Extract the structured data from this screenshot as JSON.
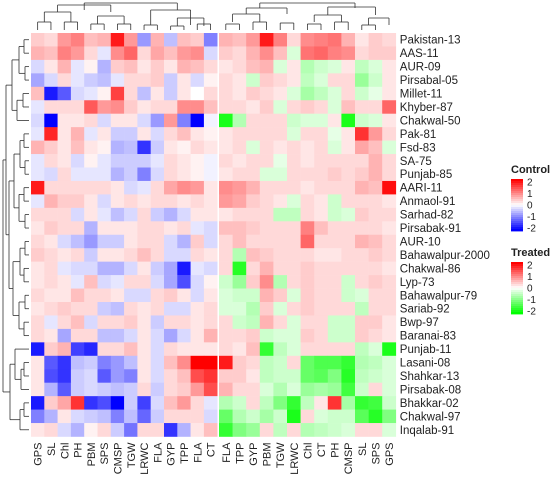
{
  "chart_data": {
    "type": "heatmap",
    "title": "",
    "rows": [
      "Pakistan-13",
      "AAS-11",
      "AUR-09",
      "Pirsabal-05",
      "Millet-11",
      "Khyber-87",
      "Chakwal-50",
      "Pak-81",
      "Fsd-83",
      "SA-75",
      "Punjab-85",
      "AARI-11",
      "Anmaol-91",
      "Sarhad-82",
      "Pirsabak-91",
      "AUR-10",
      "Bahawalpur-2000",
      "Chakwal-86",
      "Lyp-73",
      "Bahawalpur-79",
      "Sariab-92",
      "Bwp-97",
      "Baranai-83",
      "Punjab-11",
      "Lasani-08",
      "Shahkar-13",
      "Pirsabak-08",
      "Bhakkar-02",
      "Chakwal-97",
      "Inqalab-91"
    ],
    "panels": [
      {
        "name": "Control",
        "columns": [
          "GPS",
          "SL",
          "Chl",
          "PH",
          "PBM",
          "SPS",
          "CMSP",
          "TGW",
          "LRWC",
          "FLA",
          "GYP",
          "TPP",
          "FLA",
          "CT"
        ],
        "legend_title": "Control",
        "legend_ticks": [
          "2",
          "1",
          "0",
          "-1",
          "-2"
        ],
        "scale_colors": {
          "low": "#0000ff",
          "mid": "#ffffff",
          "high": "#ff0000"
        },
        "values": [
          [
            0.4,
            0.3,
            0.8,
            1.0,
            0.5,
            0.6,
            1.8,
            0.8,
            -0.8,
            0.6,
            -0.5,
            0.5,
            0.4,
            -1.0
          ],
          [
            0.6,
            0.5,
            1.0,
            0.8,
            0.3,
            -0.2,
            0.9,
            1.2,
            0.3,
            0.7,
            0.5,
            0.8,
            0.9,
            -0.3
          ],
          [
            -0.3,
            0.2,
            0.6,
            -0.2,
            0.1,
            -0.6,
            0.4,
            0.5,
            0.2,
            0.4,
            0.2,
            0.6,
            0.5,
            0.3
          ],
          [
            -0.7,
            -0.3,
            0.3,
            -0.2,
            -0.4,
            -0.5,
            -0.2,
            0.3,
            0.3,
            0.4,
            -0.4,
            0.2,
            -0.3,
            0.1
          ],
          [
            0.5,
            -1.8,
            -1.3,
            -0.3,
            -0.2,
            0.1,
            1.5,
            0.3,
            -0.5,
            0.2,
            -0.4,
            0.2,
            0.0,
            0.3
          ],
          [
            -0.2,
            0.3,
            0.3,
            0.3,
            1.3,
            0.8,
            0.9,
            0.4,
            0.2,
            0.3,
            0.3,
            0.9,
            0.9,
            0.5
          ],
          [
            -0.3,
            -2.0,
            0.2,
            0.2,
            0.3,
            -0.3,
            0.2,
            0.2,
            -0.3,
            -0.8,
            0.8,
            -1.0,
            -2.0,
            -0.1
          ],
          [
            -0.2,
            1.7,
            0.2,
            0.6,
            -0.2,
            0.2,
            -0.4,
            -0.4,
            0.2,
            -0.3,
            0.3,
            0.5,
            0.2,
            0.1
          ],
          [
            0.6,
            0.4,
            0.2,
            0.5,
            0.2,
            0.1,
            -0.6,
            -0.5,
            -1.6,
            -0.4,
            0.2,
            0.1,
            0.3,
            0.2
          ],
          [
            -0.2,
            0.3,
            0.2,
            -0.3,
            0.1,
            -0.2,
            -0.4,
            -0.4,
            -0.4,
            -0.2,
            0.3,
            0.2,
            0.1,
            -0.1
          ],
          [
            -0.2,
            -0.3,
            0.3,
            -0.2,
            -0.2,
            -0.2,
            -0.6,
            -0.4,
            -1.0,
            -0.3,
            0.3,
            0.2,
            0.1,
            -0.1
          ],
          [
            1.8,
            0.3,
            0.3,
            0.3,
            0.3,
            0.3,
            0.2,
            -0.3,
            -0.2,
            0.3,
            0.7,
            0.9,
            0.8,
            0.2
          ],
          [
            -0.2,
            0.6,
            0.4,
            0.4,
            0.2,
            -0.3,
            0.2,
            0.3,
            0.2,
            0.3,
            0.3,
            0.2,
            0.3,
            0.2
          ],
          [
            0.3,
            0.3,
            0.3,
            -0.3,
            0.2,
            -0.2,
            -0.5,
            -0.3,
            0.3,
            -0.4,
            -0.6,
            -0.3,
            0.2,
            0.2
          ],
          [
            0.2,
            0.4,
            0.3,
            0.3,
            -0.6,
            0.2,
            0.2,
            0.2,
            0.3,
            0.3,
            0.2,
            0.3,
            -0.2,
            -0.3
          ],
          [
            0.3,
            0.2,
            -0.3,
            -0.5,
            -0.8,
            -0.4,
            -0.4,
            0.2,
            0.3,
            0.3,
            -0.3,
            -0.6,
            0.4,
            -0.3
          ],
          [
            0.4,
            0.3,
            0.2,
            0.3,
            -0.4,
            0.2,
            0.2,
            0.3,
            0.5,
            0.3,
            -0.3,
            -0.3,
            0.3,
            0.2
          ],
          [
            0.2,
            0.3,
            -0.2,
            -0.3,
            -0.3,
            -0.6,
            -0.6,
            -0.3,
            0.2,
            -0.4,
            -0.7,
            -1.8,
            -0.2,
            -0.3
          ],
          [
            0.2,
            0.3,
            0.2,
            -0.2,
            0.5,
            -0.3,
            -0.2,
            0.3,
            0.3,
            -0.3,
            -0.7,
            -1.4,
            -0.3,
            0.1
          ],
          [
            0.3,
            0.2,
            0.2,
            0.5,
            0.3,
            0.3,
            0.2,
            -0.3,
            -0.3,
            0.3,
            0.4,
            0.2,
            -0.3,
            0.2
          ],
          [
            0.2,
            0.3,
            0.4,
            0.3,
            0.3,
            -0.4,
            -0.5,
            0.3,
            0.2,
            0.3,
            -0.3,
            -0.3,
            0.2,
            0.3
          ],
          [
            0.3,
            -0.2,
            0.3,
            0.5,
            -0.3,
            0.3,
            0.3,
            0.4,
            0.2,
            -0.4,
            0.3,
            0.3,
            0.2,
            0.3
          ],
          [
            0.3,
            0.2,
            -0.7,
            0.3,
            0.3,
            -0.5,
            -0.5,
            -0.3,
            0.2,
            -0.3,
            -0.7,
            -0.3,
            0.2,
            0.6
          ],
          [
            -1.8,
            0.4,
            0.6,
            -1.5,
            -1.7,
            0.3,
            0.3,
            0.5,
            0.2,
            -0.3,
            0.3,
            0.2,
            0.2,
            0.2
          ],
          [
            0.2,
            -1.3,
            -1.6,
            -0.5,
            -0.4,
            -1.0,
            -0.8,
            -0.5,
            0.2,
            -0.3,
            0.5,
            0.9,
            2.0,
            2.0
          ],
          [
            0.2,
            -1.4,
            -1.6,
            -0.4,
            -0.3,
            -1.3,
            -0.8,
            -1.0,
            0.2,
            -0.3,
            0.3,
            0.5,
            1.4,
            1.6
          ],
          [
            0.2,
            -0.6,
            -1.3,
            -0.4,
            -0.3,
            -0.4,
            -0.5,
            -0.4,
            0.3,
            -0.4,
            0.3,
            0.4,
            0.8,
            1.4
          ],
          [
            -1.8,
            0.4,
            0.7,
            1.6,
            -1.6,
            -1.4,
            -2.0,
            -0.4,
            -1.5,
            -0.3,
            0.5,
            0.8,
            0.3,
            -0.2
          ],
          [
            -1.0,
            -0.6,
            0.2,
            -0.3,
            -0.4,
            -0.5,
            -1.0,
            -0.5,
            -1.2,
            -0.4,
            0.3,
            0.3,
            0.3,
            -0.3
          ],
          [
            0.2,
            0.3,
            -0.3,
            -0.6,
            0.1,
            0.3,
            -0.4,
            -1.1,
            0.3,
            0.3,
            -1.6,
            -0.6,
            0.2,
            0.5
          ]
        ]
      },
      {
        "name": "Treated",
        "columns": [
          "FLA",
          "TPP",
          "GYP",
          "PBM",
          "TGW",
          "LRWC",
          "Chl",
          "CT",
          "PH",
          "CMSP",
          "SL",
          "SPS",
          "GPS"
        ],
        "legend_title": "Treated",
        "legend_ticks": [
          "2",
          "1",
          "0",
          "-1",
          "-2"
        ],
        "scale_colors": {
          "low": "#00ff00",
          "mid": "#ffffff",
          "high": "#ff0000"
        },
        "values": [
          [
            0.6,
            0.5,
            0.8,
            1.8,
            1.0,
            0.3,
            0.9,
            1.0,
            1.1,
            0.6,
            0.2,
            0.4,
            0.3
          ],
          [
            0.4,
            0.3,
            0.6,
            0.9,
            0.5,
            -0.3,
            1.1,
            1.2,
            1.0,
            0.9,
            0.3,
            0.4,
            0.4
          ],
          [
            0.2,
            0.3,
            0.5,
            0.6,
            -0.3,
            0.2,
            -0.6,
            -0.4,
            -0.3,
            0.2,
            -0.5,
            -0.3,
            0.2
          ],
          [
            0.3,
            0.2,
            -0.4,
            0.4,
            0.3,
            0.2,
            -0.5,
            -0.3,
            0.3,
            0.3,
            -0.8,
            -0.4,
            0.2
          ],
          [
            0.3,
            0.2,
            0.4,
            0.3,
            0.2,
            -0.3,
            -0.7,
            -0.5,
            -0.3,
            0.3,
            -0.4,
            -0.2,
            0.2
          ],
          [
            0.3,
            0.3,
            0.2,
            0.4,
            -0.3,
            0.3,
            0.4,
            0.3,
            -0.3,
            0.5,
            0.3,
            0.3,
            1.2
          ],
          [
            -1.8,
            -0.6,
            0.3,
            0.3,
            0.3,
            -0.4,
            -0.3,
            -0.3,
            0.2,
            -1.8,
            -0.4,
            -0.3,
            0.2
          ],
          [
            0.2,
            0.3,
            0.3,
            0.3,
            0.3,
            -0.3,
            0.3,
            0.3,
            -0.2,
            0.2,
            1.6,
            0.8,
            0.3
          ],
          [
            0.2,
            0.3,
            -0.3,
            0.3,
            0.2,
            0.3,
            0.2,
            0.3,
            -0.3,
            0.2,
            0.7,
            0.5,
            -0.3
          ],
          [
            0.3,
            0.2,
            0.3,
            0.3,
            -0.2,
            0.3,
            0.2,
            0.3,
            0.3,
            0.3,
            0.3,
            0.6,
            0.3
          ],
          [
            0.2,
            0.3,
            0.3,
            -0.3,
            -0.3,
            0.3,
            0.3,
            0.3,
            0.4,
            0.3,
            0.4,
            0.6,
            0.3
          ],
          [
            0.9,
            0.8,
            0.6,
            0.3,
            0.3,
            0.3,
            0.2,
            0.3,
            0.3,
            0.3,
            0.6,
            0.5,
            1.9
          ],
          [
            0.8,
            0.7,
            0.4,
            0.3,
            0.2,
            -0.3,
            0.3,
            0.2,
            -0.4,
            0.3,
            0.3,
            0.3,
            0.2
          ],
          [
            0.2,
            0.3,
            0.3,
            0.3,
            -0.5,
            -0.5,
            0.3,
            0.2,
            -0.4,
            -0.3,
            0.4,
            0.3,
            0.3
          ],
          [
            0.5,
            0.5,
            0.4,
            0.3,
            0.3,
            0.3,
            1.0,
            0.5,
            0.3,
            0.3,
            0.3,
            0.3,
            0.2
          ],
          [
            0.3,
            0.5,
            0.3,
            0.3,
            0.3,
            0.3,
            1.2,
            0.3,
            0.3,
            0.3,
            0.6,
            0.5,
            0.3
          ],
          [
            0.3,
            -0.6,
            0.5,
            0.4,
            0.3,
            0.3,
            0.3,
            0.2,
            0.2,
            0.3,
            0.3,
            0.4,
            0.3
          ],
          [
            0.3,
            -1.7,
            0.3,
            0.6,
            0.3,
            0.3,
            0.4,
            0.3,
            0.3,
            0.3,
            0.3,
            0.3,
            0.2
          ],
          [
            -0.4,
            -0.8,
            0.4,
            0.9,
            -0.6,
            0.3,
            0.4,
            0.3,
            0.3,
            -0.4,
            0.3,
            0.4,
            0.3
          ],
          [
            -0.3,
            -0.4,
            -0.4,
            0.6,
            0.4,
            -0.3,
            0.4,
            0.3,
            0.3,
            -0.4,
            -0.3,
            0.3,
            0.3
          ],
          [
            -0.3,
            -0.3,
            -0.6,
            0.4,
            -0.3,
            0.3,
            0.4,
            0.3,
            0.3,
            0.3,
            -0.5,
            0.3,
            0.3
          ],
          [
            0.3,
            -0.4,
            -0.5,
            0.6,
            0.3,
            -0.3,
            0.3,
            0.3,
            -0.4,
            -0.4,
            0.4,
            0.4,
            0.2
          ],
          [
            0.3,
            0.3,
            0.4,
            -0.4,
            -0.3,
            -0.3,
            0.4,
            0.3,
            -0.4,
            -0.4,
            0.4,
            0.3,
            0.2
          ],
          [
            0.3,
            0.2,
            0.5,
            -1.6,
            -0.5,
            -0.3,
            0.3,
            0.3,
            0.3,
            0.3,
            -0.5,
            -0.3,
            -1.8
          ],
          [
            1.8,
            0.4,
            0.3,
            -0.5,
            -0.4,
            0.3,
            -1.2,
            -1.4,
            -1.4,
            -1.6,
            -0.6,
            -0.5,
            -0.3
          ],
          [
            0.4,
            0.4,
            0.2,
            -0.5,
            -0.4,
            -0.4,
            -1.2,
            -1.3,
            -1.0,
            -1.7,
            -0.5,
            -0.4,
            -0.3
          ],
          [
            0.6,
            0.3,
            0.3,
            -0.3,
            -0.6,
            -0.3,
            -0.8,
            -0.7,
            -0.8,
            -1.5,
            -0.4,
            0.3,
            -0.3
          ],
          [
            -0.6,
            -0.4,
            0.3,
            -0.5,
            -1.0,
            -1.6,
            -0.5,
            0.2,
            1.6,
            -0.7,
            -1.6,
            -1.5,
            -0.4
          ],
          [
            -1.2,
            -0.6,
            -0.4,
            -0.7,
            -0.4,
            -1.8,
            0.3,
            -0.3,
            -0.4,
            -0.4,
            -1.3,
            -1.7,
            -1.0
          ],
          [
            -1.6,
            -1.0,
            -0.8,
            0.3,
            -0.5,
            0.3,
            -0.6,
            -0.5,
            -0.4,
            -0.3,
            0.3,
            0.3,
            -0.3
          ]
        ]
      }
    ]
  }
}
